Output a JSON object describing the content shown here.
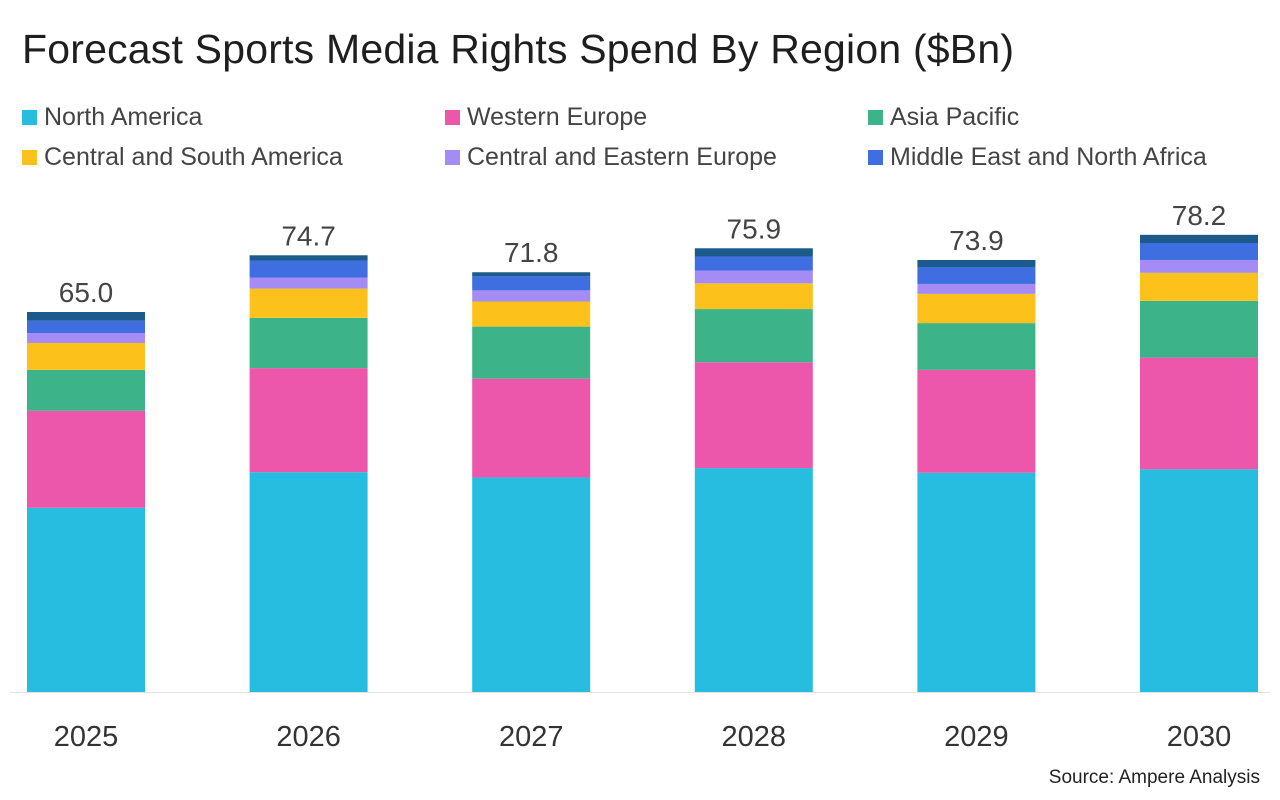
{
  "chart_data": {
    "type": "bar",
    "stacked": true,
    "title": "Forecast Sports Media Rights Spend By Region ($Bn)",
    "xlabel": "",
    "ylabel": "",
    "categories": [
      "2025",
      "2026",
      "2027",
      "2028",
      "2029",
      "2030"
    ],
    "totals": [
      "65.0",
      "74.7",
      "71.8",
      "75.9",
      "73.9",
      "78.2"
    ],
    "ylim": [
      0,
      80
    ],
    "grid": false,
    "legend_position": "top",
    "series": [
      {
        "name": "North America",
        "color": "#26bde0",
        "values": [
          31.5,
          37.6,
          36.7,
          38.3,
          37.5,
          38.1
        ]
      },
      {
        "name": "Western Europe",
        "color": "#ec57ab",
        "values": [
          16.6,
          17.8,
          16.9,
          18.1,
          17.6,
          19.1
        ]
      },
      {
        "name": "Asia Pacific",
        "color": "#3db389",
        "values": [
          7.0,
          8.6,
          8.9,
          9.1,
          8.0,
          9.7
        ]
      },
      {
        "name": "Central and South America",
        "color": "#fcc21b",
        "values": [
          4.6,
          5.0,
          4.3,
          4.4,
          5.0,
          4.8
        ]
      },
      {
        "name": "Central and Eastern Europe",
        "color": "#a58cf5",
        "values": [
          1.7,
          1.9,
          1.9,
          2.2,
          1.7,
          2.2
        ]
      },
      {
        "name": "Middle East and North Africa",
        "color": "#3f6ee0",
        "values": [
          2.1,
          2.9,
          2.4,
          2.4,
          2.9,
          2.9
        ]
      },
      {
        "color": "#1b5a8a",
        "values": [
          1.5,
          0.9,
          0.7,
          1.4,
          1.2,
          1.4
        ]
      }
    ],
    "source": "Source: Ampere Analysis"
  }
}
